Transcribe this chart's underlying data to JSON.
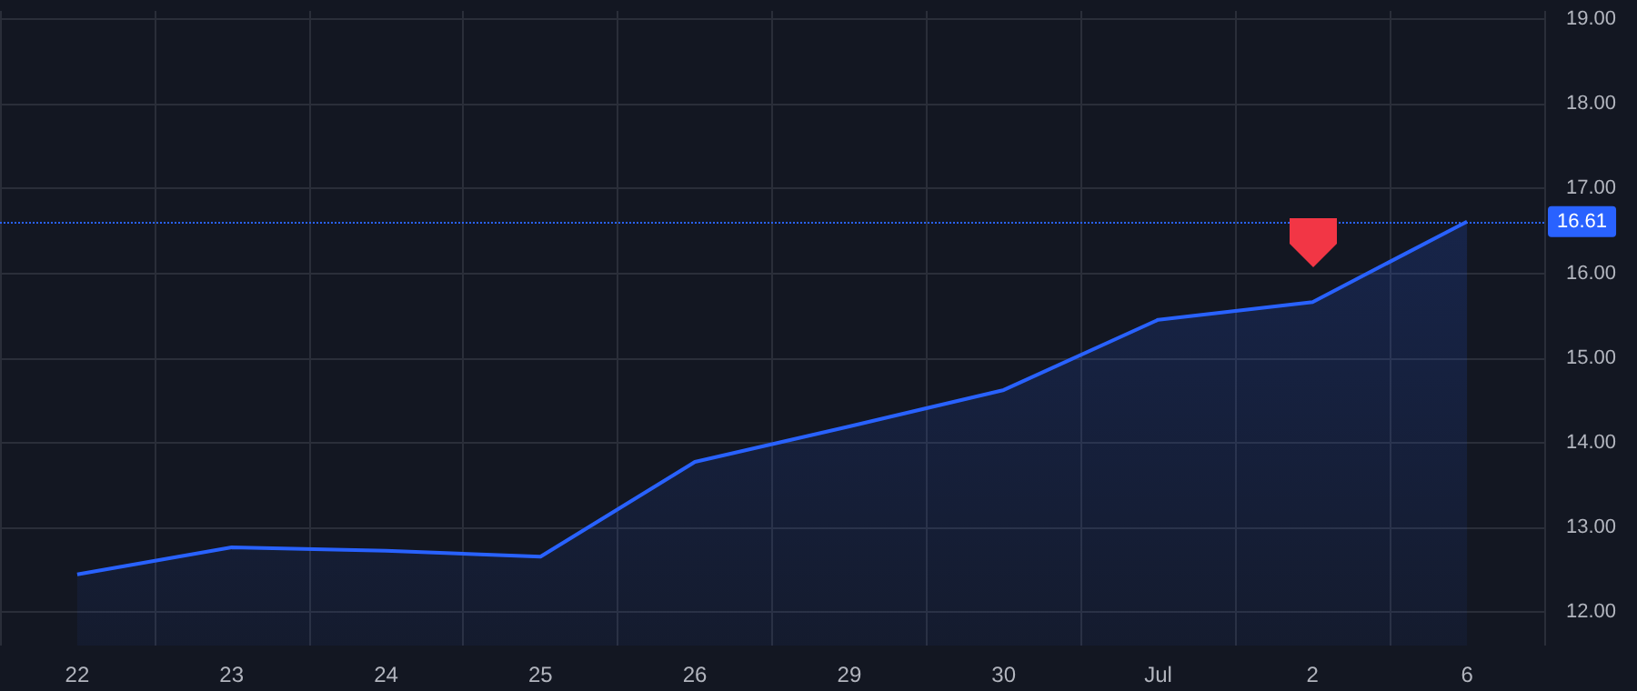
{
  "chart_data": {
    "type": "area",
    "categories": [
      "22",
      "23",
      "24",
      "25",
      "26",
      "29",
      "30",
      "Jul",
      "2",
      "6"
    ],
    "series": [
      {
        "color": "#2962ff",
        "values": [
          12.44,
          12.76,
          12.72,
          12.65,
          13.77,
          14.19,
          14.62,
          15.45,
          15.66,
          16.61
        ]
      }
    ],
    "ylim": [
      11.6,
      19.1
    ],
    "yticks": [
      {
        "value": 12,
        "label": "12.00"
      },
      {
        "value": 13,
        "label": "13.00"
      },
      {
        "value": 14,
        "label": "14.00"
      },
      {
        "value": 15,
        "label": "15.00"
      },
      {
        "value": 16,
        "label": "16.00"
      },
      {
        "value": 17,
        "label": "17.00"
      },
      {
        "value": 18,
        "label": "18.00"
      },
      {
        "value": 19,
        "label": "19.00"
      }
    ],
    "ref_lines": [
      {
        "axis": "y",
        "value": 16.61,
        "label": "16.61",
        "color": "#2962ff",
        "line_style": "dotted"
      }
    ],
    "grid": true,
    "marker": "none",
    "line_style": "solid"
  }
}
